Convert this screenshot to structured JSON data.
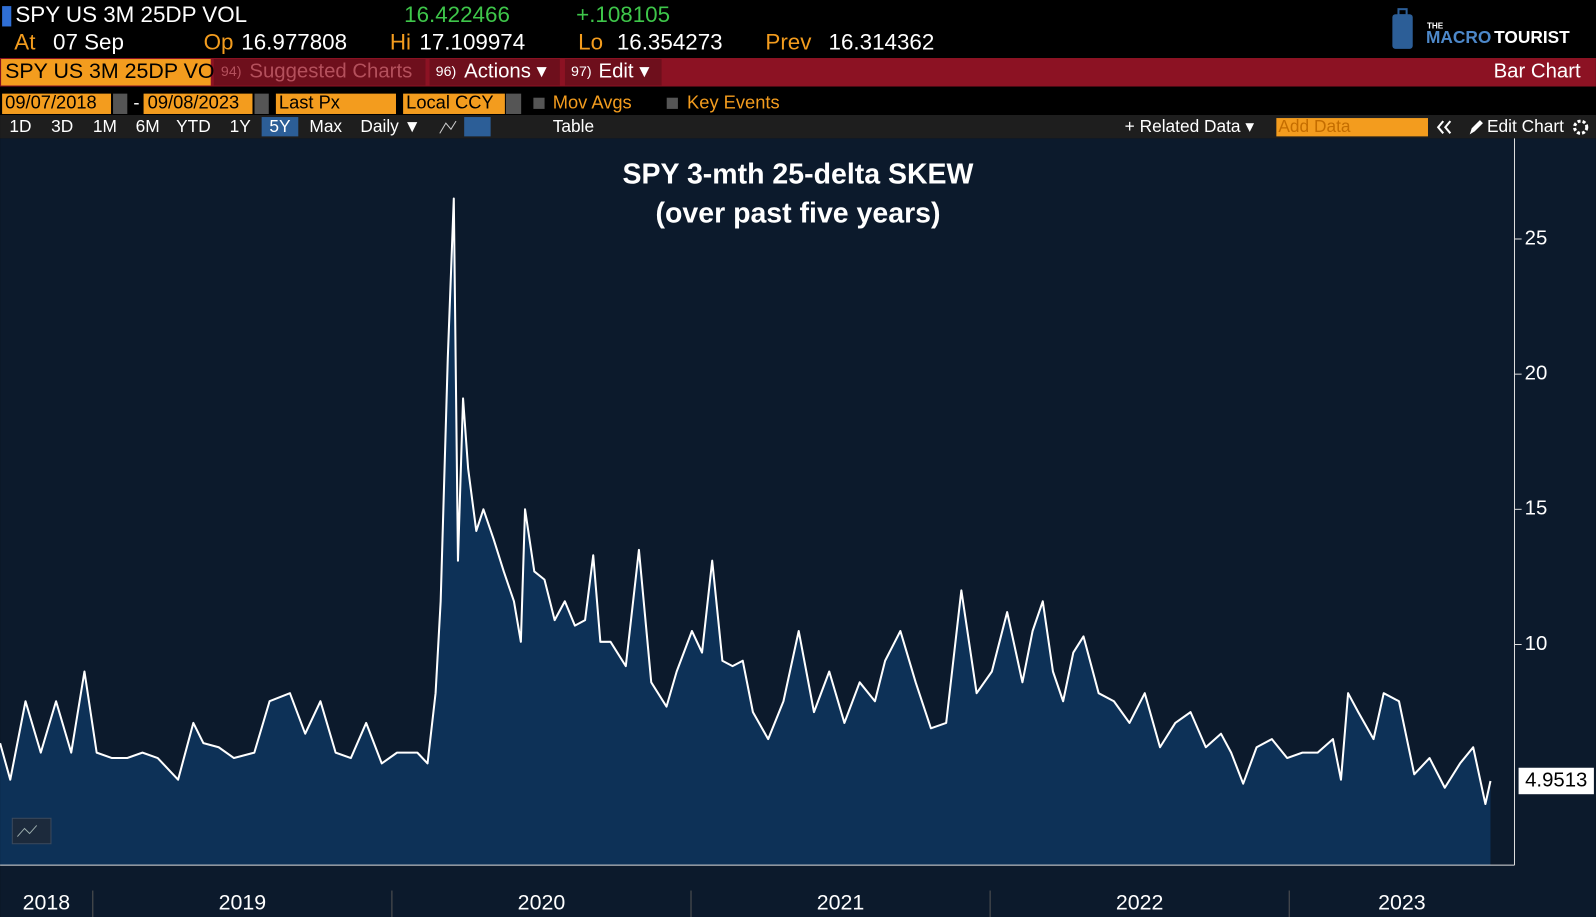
{
  "ui": {
    "ticker": "SPY US 3M 25DP VOL",
    "last": "16.422466",
    "change": "+.108105",
    "quote": [
      [
        "At",
        "07 Sep"
      ],
      [
        "Op",
        "16.977808"
      ],
      [
        "Hi",
        "17.109974"
      ],
      [
        "Lo",
        "16.354273"
      ],
      [
        "Prev",
        "16.314362"
      ]
    ],
    "logo": {
      "the": "THE",
      "macro": "MACRO",
      "tourist": "TOURIST"
    },
    "security_field": "SPY US 3M 25DP VO",
    "menu": [
      {
        "num": "94)",
        "label": "Suggested Charts"
      },
      {
        "num": "96)",
        "label": "Actions ▾"
      },
      {
        "num": "97)",
        "label": "Edit ▾"
      }
    ],
    "chart_kind": "Bar Chart",
    "start_date": "09/07/2018",
    "date_sep": "-",
    "end_date": "09/08/2023",
    "field": "Last Px",
    "currency": "Local CCY",
    "mov_avgs": "Mov Avgs",
    "key_events": "Key Events",
    "ranges": [
      "1D",
      "3D",
      "1M",
      "6M",
      "YTD",
      "1Y",
      "5Y",
      "Max"
    ],
    "active_range": 6,
    "frequency": "Daily ▼",
    "table": "Table",
    "related": "+ Related Data ▾",
    "add_data": "Add Data",
    "edit_chart": "Edit Chart"
  },
  "chart_data": {
    "type": "area",
    "title": "SPY 3-mth 25-delta SKEW",
    "subtitle": "(over past five years)",
    "x": [
      2018.69,
      2018.724,
      2018.775,
      2018.826,
      2018.877,
      2018.928,
      2018.972,
      2019.013,
      2019.064,
      2019.115,
      2019.166,
      2019.217,
      2019.285,
      2019.336,
      2019.37,
      2019.421,
      2019.472,
      2019.54,
      2019.591,
      2019.659,
      2019.71,
      2019.761,
      2019.812,
      2019.863,
      2019.914,
      2019.966,
      2020.017,
      2020.085,
      2020.119,
      2020.146,
      2020.163,
      2020.187,
      2020.207,
      2020.221,
      2020.238,
      2020.255,
      2020.282,
      2020.306,
      2020.34,
      2020.374,
      2020.408,
      2020.431,
      2020.445,
      2020.476,
      2020.51,
      2020.544,
      2020.578,
      2020.612,
      2020.646,
      2020.673,
      2020.697,
      2020.731,
      2020.782,
      2020.826,
      2020.867,
      2020.918,
      2020.952,
      2021.003,
      2021.037,
      2021.071,
      2021.105,
      2021.139,
      2021.173,
      2021.207,
      2021.258,
      2021.309,
      2021.36,
      2021.411,
      2021.462,
      2021.513,
      2021.564,
      2021.615,
      2021.649,
      2021.7,
      2021.751,
      2021.802,
      2021.853,
      2021.904,
      2021.955,
      2022.006,
      2022.057,
      2022.108,
      2022.142,
      2022.176,
      2022.21,
      2022.244,
      2022.278,
      2022.312,
      2022.363,
      2022.414,
      2022.466,
      2022.517,
      2022.568,
      2022.619,
      2022.67,
      2022.721,
      2022.772,
      2022.806,
      2022.846,
      2022.891,
      2022.942,
      2022.993,
      2023.044,
      2023.095,
      2023.146,
      2023.173,
      2023.197,
      2023.231,
      2023.282,
      2023.316,
      2023.367,
      2023.418,
      2023.469,
      2023.52,
      2023.571,
      2023.615,
      2023.656,
      2023.673
    ],
    "values": [
      6.35,
      5.0,
      7.9,
      6.0,
      7.9,
      6.0,
      9.0,
      6.0,
      5.8,
      5.8,
      6.0,
      5.8,
      5.0,
      7.1,
      6.35,
      6.2,
      5.8,
      6.0,
      7.9,
      8.2,
      6.7,
      7.9,
      6.0,
      5.8,
      7.1,
      5.6,
      6.0,
      6.0,
      5.6,
      8.2,
      11.6,
      20.6,
      26.5,
      13.1,
      19.1,
      16.5,
      14.2,
      15.0,
      13.9,
      12.7,
      11.6,
      10.1,
      15.0,
      12.7,
      12.4,
      10.9,
      11.6,
      10.7,
      10.9,
      13.3,
      10.1,
      10.1,
      9.2,
      13.5,
      8.6,
      7.7,
      9.0,
      10.5,
      9.7,
      13.1,
      9.4,
      9.2,
      9.4,
      7.5,
      6.5,
      7.9,
      10.5,
      7.5,
      9.0,
      7.1,
      8.6,
      7.9,
      9.4,
      10.5,
      8.6,
      6.9,
      7.1,
      12.0,
      8.2,
      9.0,
      11.2,
      8.6,
      10.5,
      11.6,
      9.0,
      7.9,
      9.7,
      10.3,
      8.2,
      7.9,
      7.1,
      8.2,
      6.2,
      7.1,
      7.5,
      6.2,
      6.7,
      6.0,
      4.85,
      6.2,
      6.5,
      5.8,
      6.0,
      6.0,
      6.5,
      5.0,
      8.2,
      7.5,
      6.5,
      8.2,
      7.9,
      5.2,
      5.8,
      4.7,
      5.6,
      6.2,
      4.1,
      4.9513
    ],
    "last_value_label": "4.9513",
    "color": "#0d3157",
    "line_color": "#ffffff",
    "xlim": [
      2018.69,
      2023.76
    ],
    "xticks": [
      2019,
      2020,
      2021,
      2022,
      2023
    ],
    "xtick_labels": [
      "2018",
      "2019",
      "2020",
      "2021",
      "2022",
      "2023"
    ],
    "ylim": [
      1.84,
      28.72
    ],
    "yticks": [
      10,
      15,
      20,
      25
    ]
  }
}
